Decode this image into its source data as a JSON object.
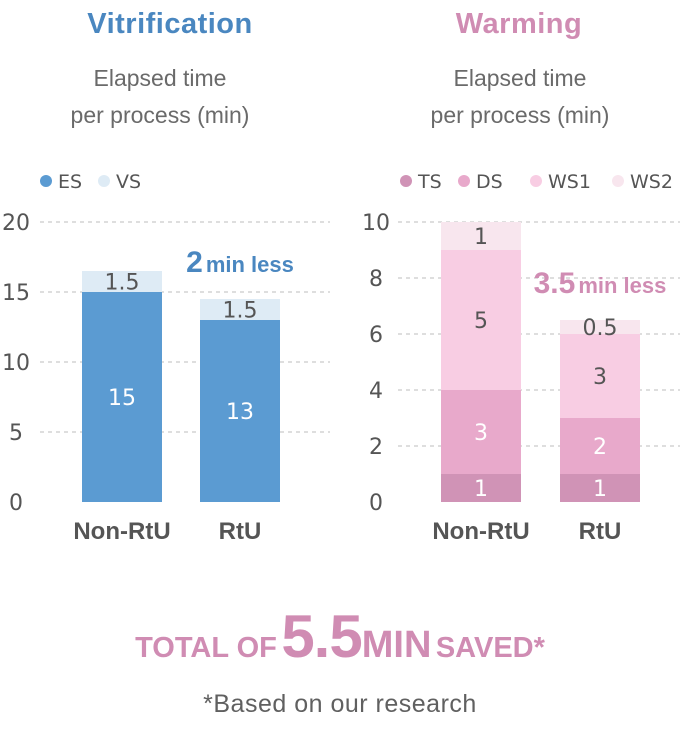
{
  "chart_data": [
    {
      "type": "bar",
      "title": "Vitrification",
      "subtitle": [
        "Elapsed time",
        "per process (min)"
      ],
      "categories": [
        "Non-RtU",
        "RtU"
      ],
      "series": [
        {
          "name": "ES",
          "values": [
            15,
            13
          ],
          "labels": [
            "15",
            "13"
          ],
          "color": "#5b9bd2",
          "label_color": "#ffffff"
        },
        {
          "name": "VS",
          "values": [
            1.5,
            1.5
          ],
          "labels": [
            "1.5",
            "1.5"
          ],
          "color": "#deebf5",
          "label_color": "#555555"
        }
      ],
      "stacked": true,
      "ylim": [
        0,
        20
      ],
      "yticks": [
        0,
        5,
        10,
        15,
        20
      ],
      "grid": true,
      "legend": "top-left",
      "annotation": {
        "value": "2",
        "text": "min less",
        "color": "#4a87c0"
      },
      "title_color": "#4a87c0"
    },
    {
      "type": "bar",
      "title": "Warming",
      "subtitle": [
        "Elapsed time",
        "per process (min)"
      ],
      "categories": [
        "Non-RtU",
        "RtU"
      ],
      "series": [
        {
          "name": "TS",
          "values": [
            1,
            1
          ],
          "labels": [
            "1",
            "1"
          ],
          "color": "#d093b6",
          "label_color": "#ffffff"
        },
        {
          "name": "DS",
          "values": [
            3,
            2
          ],
          "labels": [
            "3",
            "2"
          ],
          "color": "#e8a9cb",
          "label_color": "#ffffff"
        },
        {
          "name": "WS1",
          "values": [
            5,
            3
          ],
          "labels": [
            "5",
            "3"
          ],
          "color": "#f8cde3",
          "label_color": "#555555"
        },
        {
          "name": "WS2",
          "values": [
            1,
            0.5
          ],
          "labels": [
            "1",
            "0.5"
          ],
          "color": "#f8e6ee",
          "label_color": "#555555"
        }
      ],
      "stacked": true,
      "ylim": [
        0,
        10
      ],
      "yticks": [
        0,
        2,
        4,
        6,
        8,
        10
      ],
      "grid": true,
      "legend": "top-left",
      "annotation": {
        "value": "3.5",
        "text": "min less",
        "color": "#d08cb3"
      },
      "title_color": "#d08cb3"
    }
  ],
  "footer": {
    "prefix": "TOTAL OF",
    "value": "5.5",
    "unit": "MIN",
    "suffix": "SAVED*",
    "note": "*Based on our research"
  }
}
